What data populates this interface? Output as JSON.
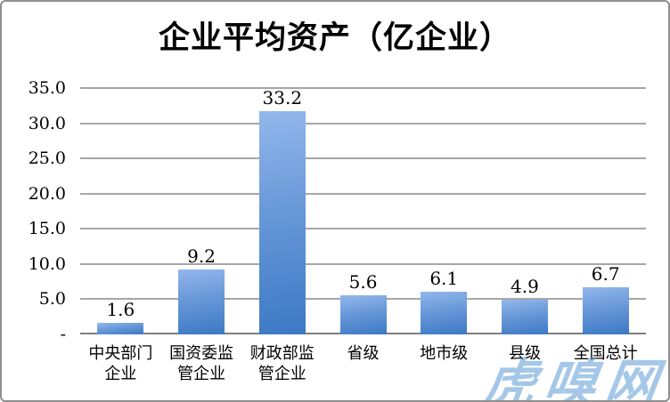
{
  "chart_data": {
    "type": "bar",
    "title": "企业平均资产（亿企业）",
    "categories": [
      "中央部门\n企业",
      "国资委监\n管企业",
      "财政部监\n管企业",
      "省级",
      "地市级",
      "县级",
      "全国总计"
    ],
    "values": [
      1.6,
      9.2,
      33.2,
      5.6,
      6.1,
      4.9,
      6.7
    ],
    "data_labels": [
      "1.6",
      "9.2",
      "33.2",
      "5.6",
      "6.1",
      "4.9",
      "6.7"
    ],
    "xlabel": "",
    "ylabel": "",
    "ylim": [
      0,
      35
    ],
    "y_ticks": [
      {
        "value": 35,
        "label": "35.0"
      },
      {
        "value": 30,
        "label": "30.0"
      },
      {
        "value": 25,
        "label": "25.0"
      },
      {
        "value": 20,
        "label": "20.0"
      },
      {
        "value": 15,
        "label": "15.0"
      },
      {
        "value": 10,
        "label": "10.0"
      },
      {
        "value": 5,
        "label": "5.0"
      },
      {
        "value": 0,
        "label": "-"
      }
    ],
    "grid": true,
    "legend": "none",
    "colors": {
      "bar_gradient_top": "#93b7ec",
      "bar_gradient_mid": "#6898d8",
      "bar_gradient_bottom": "#3c79c5",
      "gridline": "#a6a6a6",
      "axis_line": "#7f7f7f",
      "text": "#000000"
    }
  },
  "watermark": {
    "text": "虎嗅网",
    "color": "#5b9bd5"
  }
}
